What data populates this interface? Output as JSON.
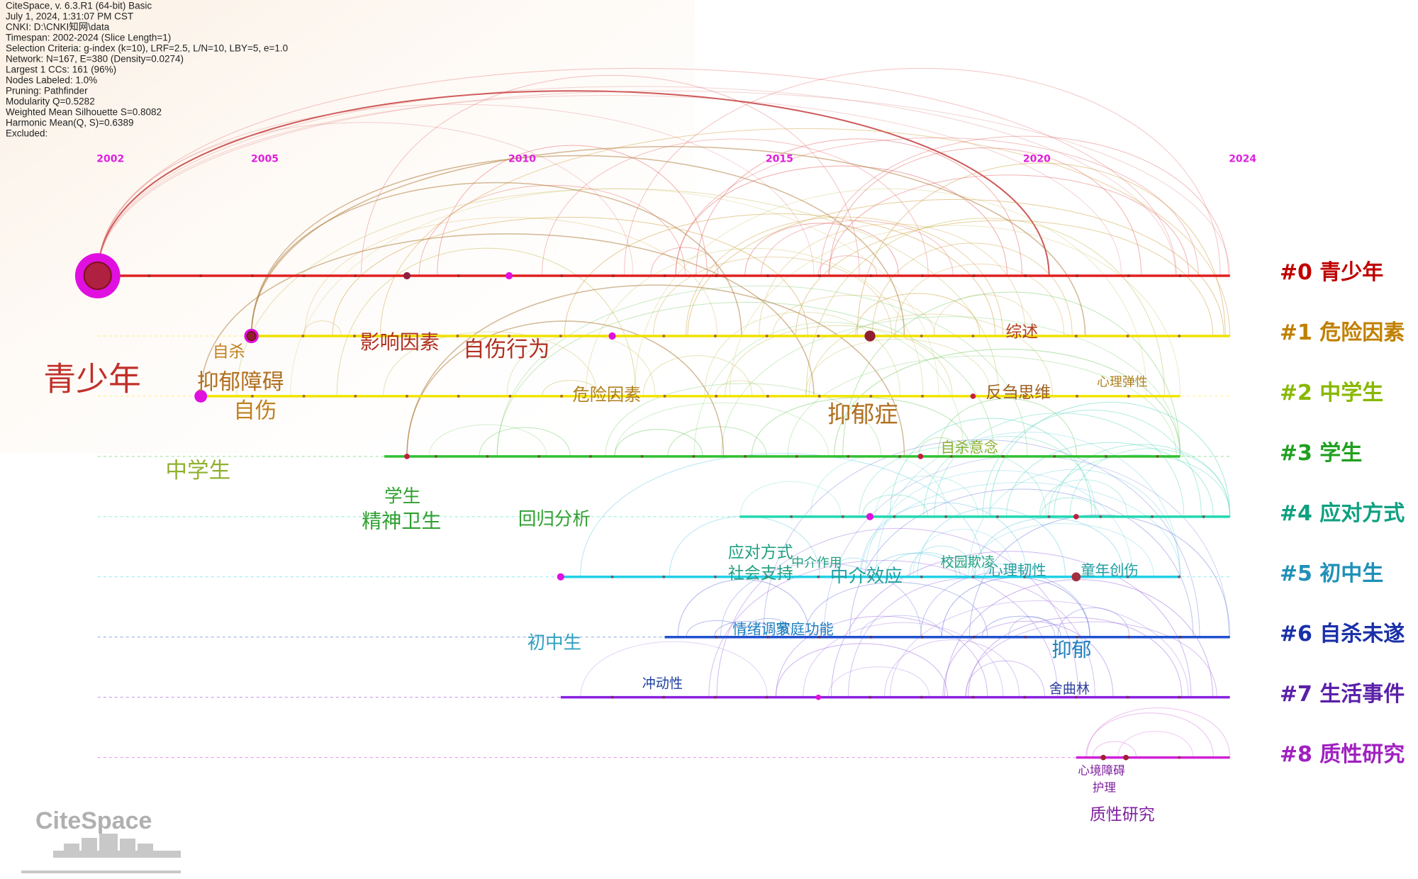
{
  "info_lines": [
    "CiteSpace, v. 6.3.R1 (64-bit) Basic",
    "July 1, 2024, 1:31:07 PM CST",
    "CNKI: D:\\CNKI知网\\data",
    "Timespan: 2002-2024 (Slice Length=1)",
    "Selection Criteria: g-index (k=10), LRF=2.5, L/N=10, LBY=5, e=1.0",
    "Network: N=167, E=380 (Density=0.0274)",
    "Largest 1 CCs: 161 (96%)",
    "Nodes Labeled: 1.0%",
    "Pruning: Pathfinder",
    "Modularity Q=0.5282",
    "Weighted Mean Silhouette S=0.8082",
    "Harmonic Mean(Q, S)=0.6389",
    "Excluded:"
  ],
  "years": [
    2002,
    2005,
    2010,
    2015,
    2020,
    2024
  ],
  "clusters": [
    "#0 青少年",
    "#1 危险因素",
    "#2 中学生",
    "#3 学生",
    "#4 应对方式",
    "#5 初中生",
    "#6 自杀未遂",
    "#7 生活事件",
    "#8 质性研究"
  ],
  "keywords": [
    "青少年",
    "自杀",
    "抑郁障碍",
    "自伤",
    "影响因素",
    "自伤行为",
    "综述",
    "中学生",
    "危险因素",
    "抑郁症",
    "反刍思维",
    "心理弹性",
    "自杀意念",
    "学生",
    "精神卫生",
    "回归分析",
    "应对方式",
    "社会支持",
    "中介作用",
    "中介效应",
    "校园欺凌",
    "心理韧性",
    "童年创伤",
    "初中生",
    "情绪调节",
    "家庭功能",
    "抑郁",
    "冲动性",
    "舍曲林",
    "心境障碍",
    "护理",
    "质性研究"
  ],
  "logo": "CiteSpace"
}
